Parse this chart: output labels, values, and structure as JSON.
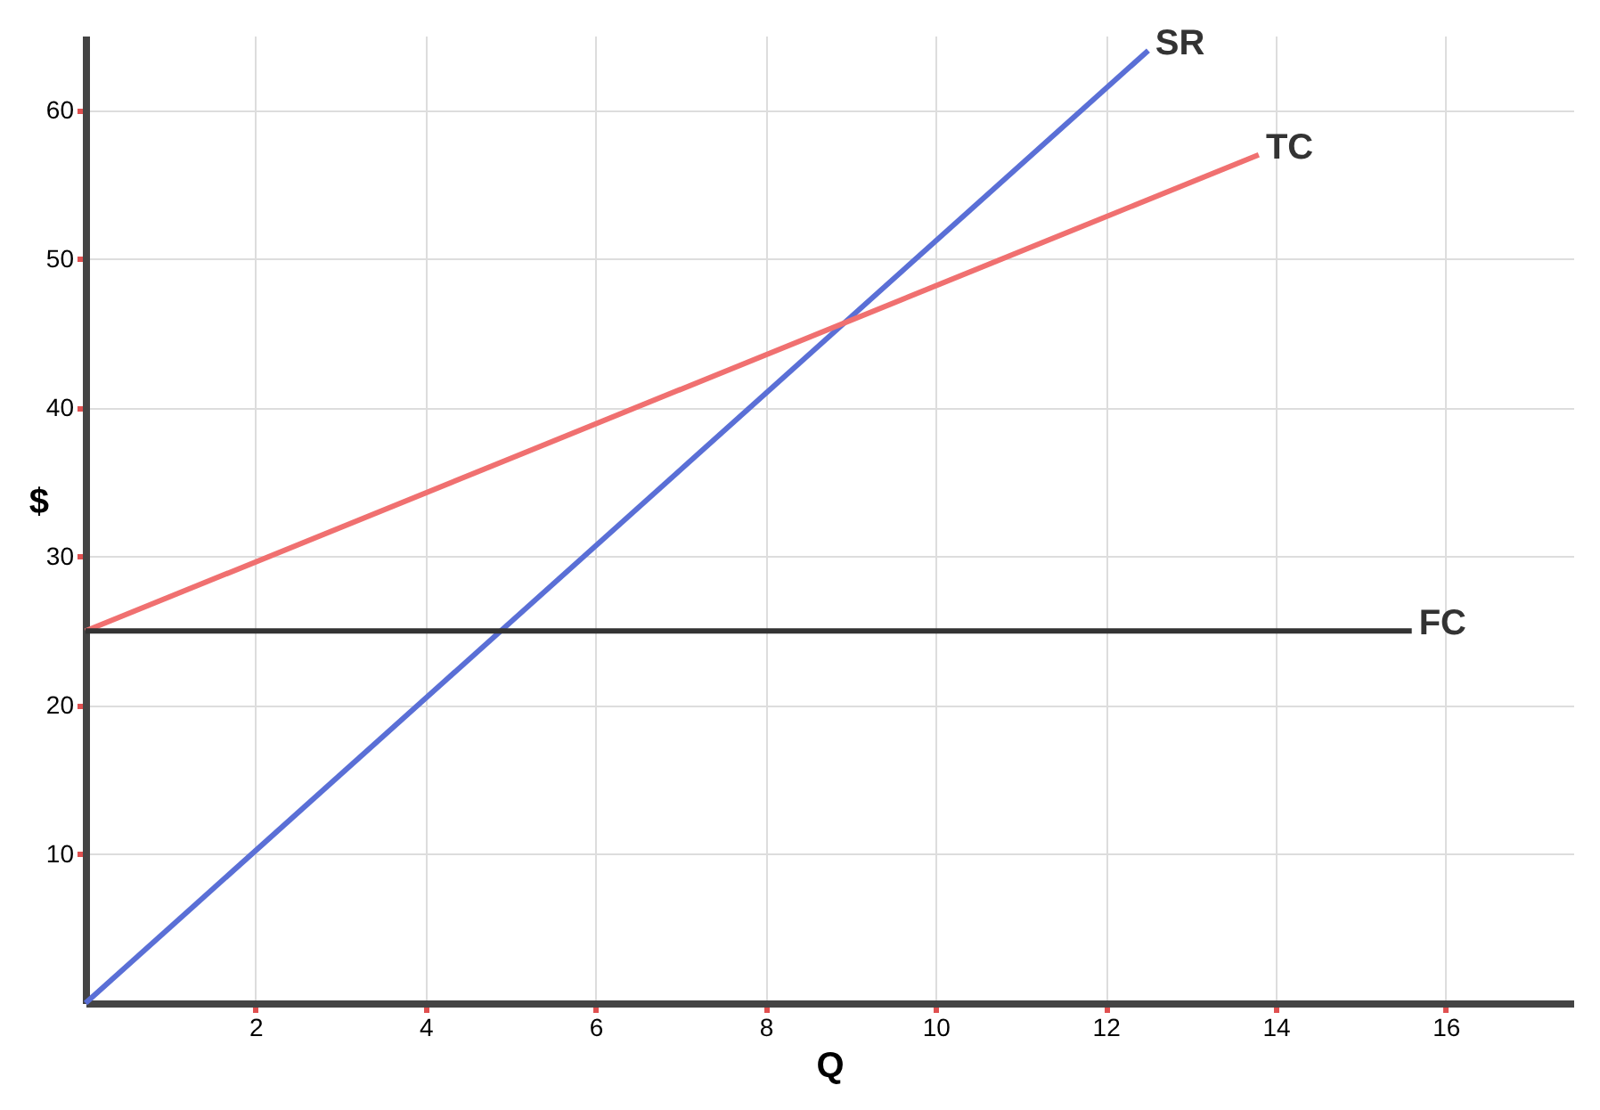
{
  "chart_data": {
    "type": "line",
    "xlabel": "Q",
    "ylabel": "$",
    "xlim": [
      0,
      17.5
    ],
    "ylim": [
      0,
      65
    ],
    "xticks": [
      2,
      4,
      6,
      8,
      10,
      12,
      14,
      16
    ],
    "yticks": [
      10,
      20,
      30,
      40,
      50,
      60
    ],
    "grid": true,
    "marker": "none",
    "line_style": "solid",
    "series": [
      {
        "name": "SR",
        "color": "#5a6fd6",
        "x": [
          0,
          12.5
        ],
        "values": [
          0,
          64
        ]
      },
      {
        "name": "TC",
        "color": "#f07070",
        "x": [
          0,
          13.8
        ],
        "values": [
          25,
          57
        ]
      },
      {
        "name": "FC",
        "color": "#333333",
        "x": [
          0,
          15.6
        ],
        "values": [
          25,
          25
        ]
      }
    ]
  }
}
